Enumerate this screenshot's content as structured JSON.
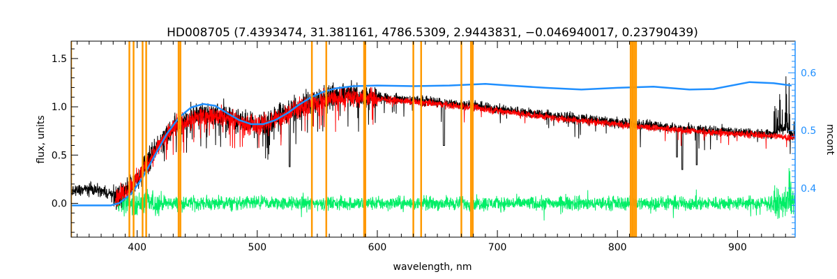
{
  "chart_data": {
    "type": "line",
    "title": "HD008705    (7.4393474, 31.381161, 4786.5309, 2.9443831, −0.046940017, 0.23790439)",
    "xlabel": "wavelength, nm",
    "ylabel": "flux, units",
    "y2label": "mcont",
    "xlim": [
      345,
      948
    ],
    "ylim": [
      -0.35,
      1.68
    ],
    "y2lim": [
      0.315,
      0.655
    ],
    "xticks": [
      400,
      500,
      600,
      700,
      800,
      900
    ],
    "yticks": [
      0.0,
      0.5,
      1.0,
      1.5
    ],
    "yticklabels": [
      "0.0",
      "0.5",
      "1.0",
      "1.5"
    ],
    "y2ticks": [
      0.4,
      0.5,
      0.6
    ],
    "y2ticklabels": [
      "0.4",
      "0.5",
      "0.6"
    ],
    "colors": {
      "observed": "#000000",
      "model": "#ff0000",
      "residual": "#00ee66",
      "continuum": "#1f8fff",
      "masks": "#ff9900"
    },
    "mask_lines_nm": [
      345,
      393.5,
      397,
      404.5,
      407.5,
      434.5,
      436,
      545.5,
      557.5,
      589,
      590,
      630,
      636.5,
      670,
      678,
      679.5,
      811,
      812.5,
      814,
      815.5
    ],
    "series": [
      {
        "key": "observed",
        "x": [
          345,
          360,
          370,
          378,
          382,
          390,
          400,
          410,
          420,
          430,
          440,
          450,
          460,
          470,
          480,
          490,
          500,
          510,
          520,
          530,
          540,
          550,
          560,
          570,
          580,
          590,
          600,
          620,
          650,
          680,
          700,
          750,
          800,
          850,
          900,
          930,
          940,
          948
        ],
        "y": [
          0.12,
          0.15,
          0.13,
          0.1,
          0.05,
          0.12,
          0.25,
          0.45,
          0.65,
          0.8,
          0.87,
          0.92,
          0.93,
          0.92,
          0.88,
          0.85,
          0.82,
          0.86,
          0.92,
          0.98,
          1.03,
          1.07,
          1.1,
          1.12,
          1.12,
          1.11,
          1.1,
          1.08,
          1.05,
          1.01,
          0.98,
          0.9,
          0.84,
          0.78,
          0.74,
          0.72,
          0.78,
          0.7
        ]
      },
      {
        "key": "model",
        "x": [
          382,
          390,
          400,
          410,
          420,
          430,
          440,
          450,
          460,
          470,
          480,
          490,
          500,
          510,
          520,
          530,
          540,
          550,
          560,
          570,
          580,
          590,
          600,
          620,
          650,
          680,
          700,
          750,
          800,
          850,
          900,
          930,
          948
        ],
        "y": [
          0.05,
          0.12,
          0.25,
          0.44,
          0.63,
          0.78,
          0.85,
          0.9,
          0.91,
          0.9,
          0.86,
          0.83,
          0.8,
          0.84,
          0.9,
          0.96,
          1.01,
          1.05,
          1.08,
          1.1,
          1.1,
          1.09,
          1.08,
          1.06,
          1.03,
          0.99,
          0.96,
          0.88,
          0.82,
          0.76,
          0.72,
          0.7,
          0.68
        ]
      },
      {
        "key": "continuum",
        "x": [
          345,
          370,
          378,
          385,
          395,
          405,
          415,
          425,
          435,
          445,
          455,
          465,
          475,
          485,
          495,
          505,
          515,
          525,
          535,
          545,
          555,
          565,
          580,
          600,
          630,
          660,
          690,
          710,
          740,
          770,
          800,
          830,
          860,
          880,
          910,
          930,
          945
        ],
        "y": [
          0.37,
          0.37,
          0.37,
          0.374,
          0.39,
          0.42,
          0.458,
          0.495,
          0.523,
          0.54,
          0.546,
          0.543,
          0.53,
          0.518,
          0.511,
          0.511,
          0.518,
          0.53,
          0.545,
          0.558,
          0.567,
          0.573,
          0.577,
          0.578,
          0.577,
          0.578,
          0.581,
          0.578,
          0.574,
          0.571,
          0.574,
          0.576,
          0.571,
          0.572,
          0.584,
          0.582,
          0.578
        ]
      },
      {
        "key": "residual",
        "x": [
          382,
          948
        ],
        "y": [
          0.0,
          0.0
        ]
      }
    ]
  }
}
